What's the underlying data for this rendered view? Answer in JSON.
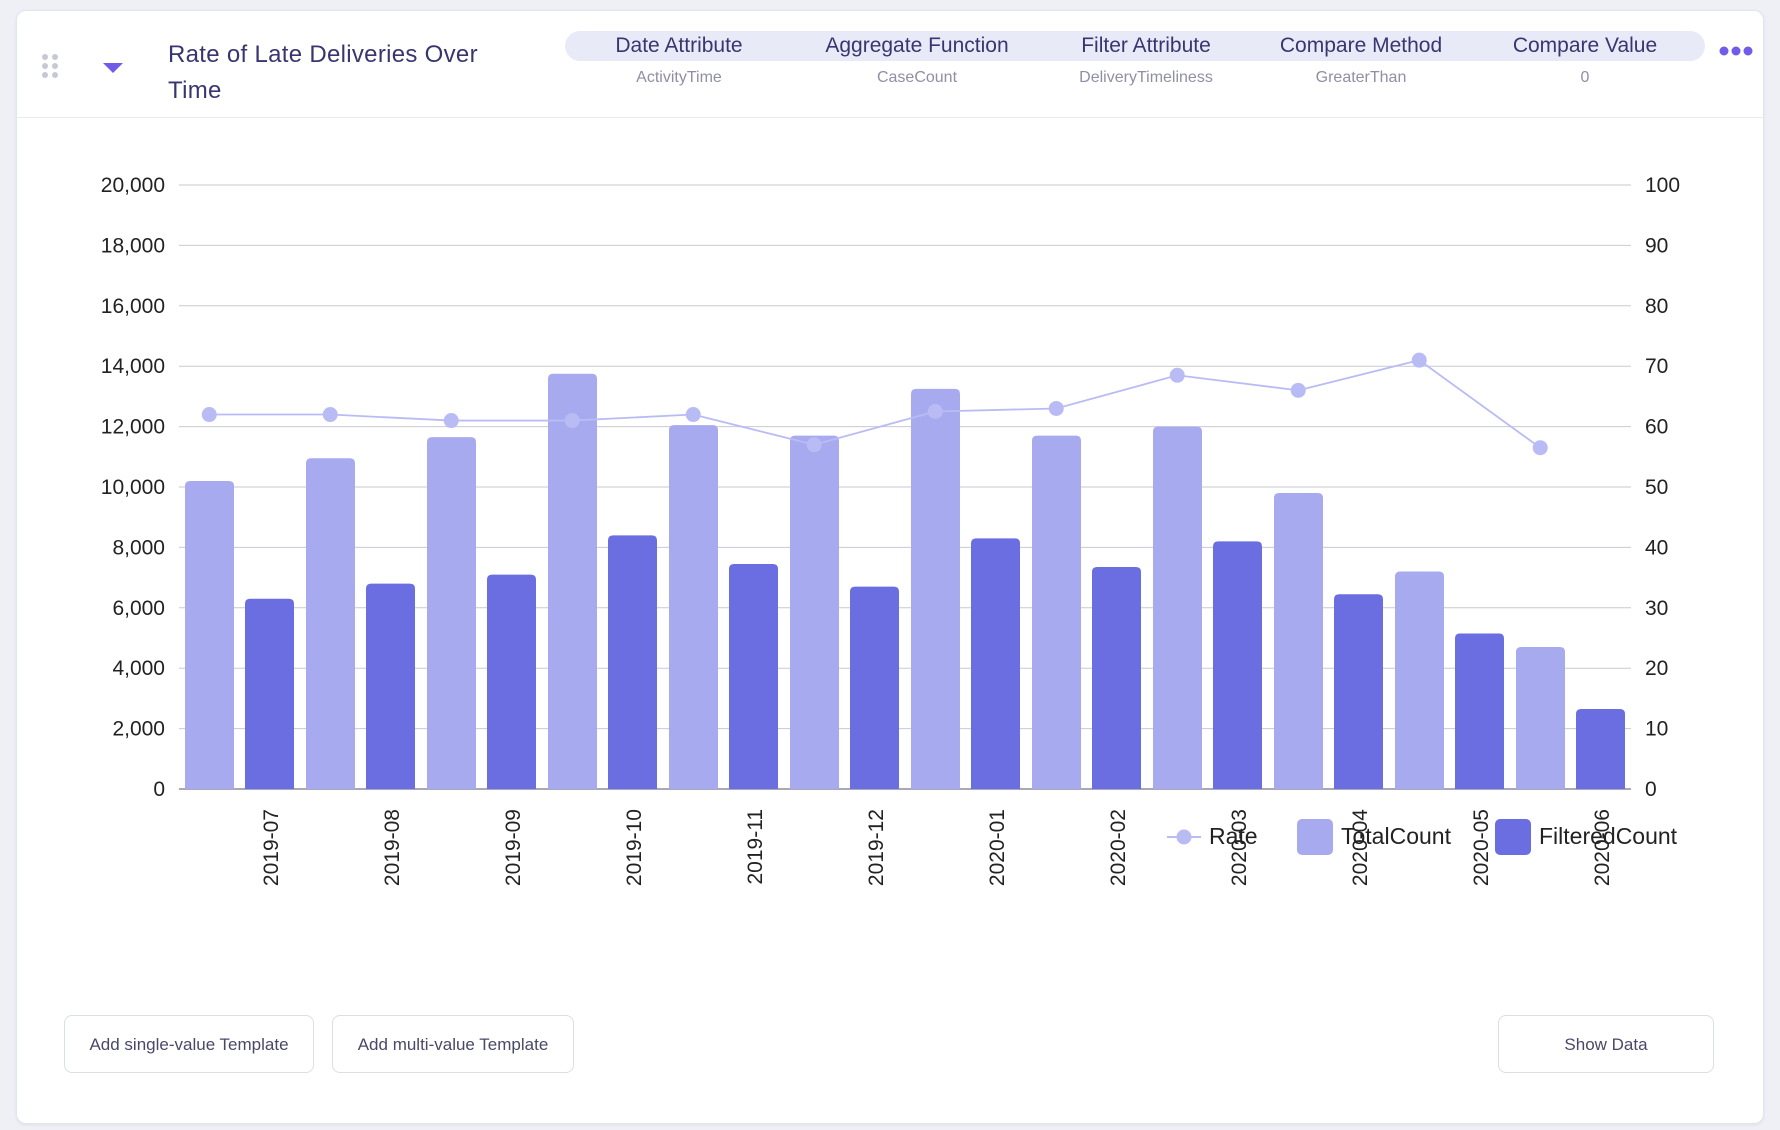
{
  "widget": {
    "title": "Rate of Late Deliveries Over Time",
    "drag_icon": "drag-handle-icon",
    "collapse_icon": "chevron-down-icon",
    "more_icon": "more-horizontal-icon"
  },
  "params": [
    {
      "label": "Date Attribute",
      "value": "ActivityTime"
    },
    {
      "label": "Aggregate Function",
      "value": "CaseCount"
    },
    {
      "label": "Filter Attribute",
      "value": "DeliveryTimeliness"
    },
    {
      "label": "Compare Method",
      "value": "GreaterThan"
    },
    {
      "label": "Compare Value",
      "value": "0"
    }
  ],
  "colors": {
    "total": "#a7aaee",
    "filtered": "#6b6ee0",
    "rate": "#b9bcf4",
    "accent": "#6f5ce8",
    "title": "#3a3570"
  },
  "chart_data": {
    "type": "bar",
    "categories": [
      "2019-07",
      "2019-08",
      "2019-09",
      "2019-10",
      "2019-11",
      "2019-12",
      "2020-01",
      "2020-02",
      "2020-03",
      "2020-04",
      "2020-05",
      "2020-06"
    ],
    "series": [
      {
        "name": "TotalCount",
        "type": "bar",
        "axis": "left",
        "values": [
          10200,
          10950,
          11650,
          13750,
          12050,
          11700,
          13250,
          11700,
          12000,
          9800,
          7200,
          4700
        ]
      },
      {
        "name": "FilteredCount",
        "type": "bar",
        "axis": "left",
        "values": [
          6300,
          6800,
          7100,
          8400,
          7450,
          6700,
          8300,
          7350,
          8200,
          6450,
          5150,
          2650
        ]
      },
      {
        "name": "Rate",
        "type": "line",
        "axis": "right",
        "values": [
          62,
          62,
          61,
          61,
          62,
          57,
          62.5,
          63,
          68.5,
          66,
          71,
          56.5
        ]
      }
    ],
    "y_left": {
      "min": 0,
      "max": 20000,
      "ticks": [
        "0",
        "2,000",
        "4,000",
        "6,000",
        "8,000",
        "10,000",
        "12,000",
        "14,000",
        "16,000",
        "18,000",
        "20,000"
      ]
    },
    "y_right": {
      "min": 0,
      "max": 100,
      "ticks": [
        "0",
        "10",
        "20",
        "30",
        "40",
        "50",
        "60",
        "70",
        "80",
        "90",
        "100"
      ]
    },
    "grid": true,
    "legend_position": "bottom-right",
    "legend": [
      "Rate",
      "TotalCount",
      "FilteredCount"
    ]
  },
  "buttons": {
    "add_single": "Add single-value Template",
    "add_multi": "Add multi-value Template",
    "show_data": "Show Data"
  }
}
